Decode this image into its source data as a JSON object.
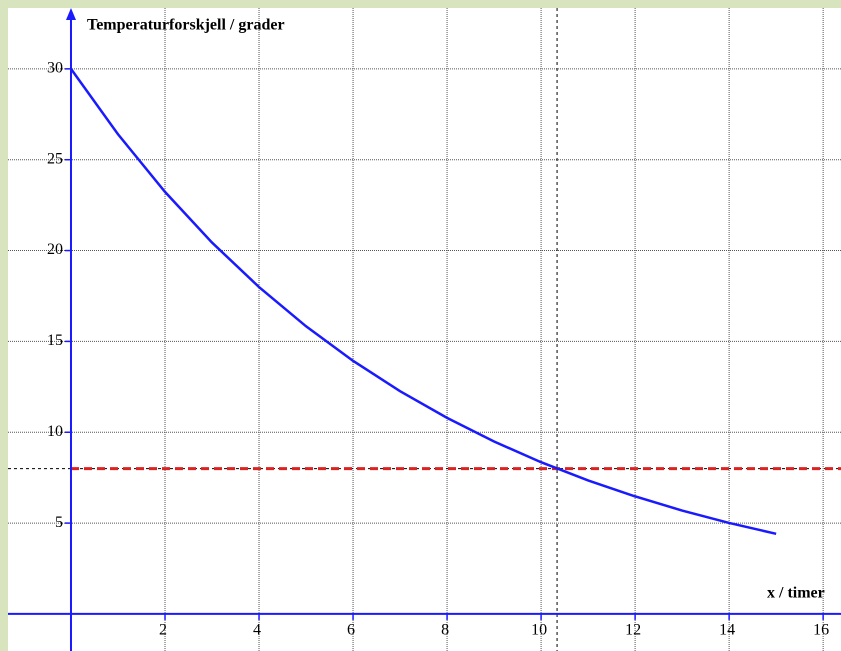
{
  "chart_data": {
    "type": "line",
    "ylabel": "Temperaturforskjell / grader",
    "xlabel": "x / timer",
    "x": [
      0,
      1,
      2,
      3,
      4,
      5,
      6,
      7,
      8,
      9,
      10,
      11,
      12,
      13,
      14,
      15
    ],
    "values": [
      30,
      26.4,
      23.23,
      20.44,
      17.99,
      15.83,
      13.93,
      12.26,
      10.79,
      9.49,
      8.35,
      7.35,
      6.47,
      5.69,
      5.01,
      4.41
    ],
    "color": "#1a1aff",
    "xlim": [
      -1.34,
      16.38
    ],
    "ylim": [
      -2.04,
      33.35
    ],
    "xticks": [
      2,
      4,
      6,
      8,
      10,
      12,
      14,
      16
    ],
    "yticks": [
      5,
      10,
      15,
      20,
      25,
      30
    ],
    "grid": true,
    "reference_lines": [
      {
        "axis": "y",
        "value": 8,
        "color": "#dd2222"
      },
      {
        "axis": "x",
        "value": 10.34,
        "color": "#000000"
      }
    ]
  }
}
